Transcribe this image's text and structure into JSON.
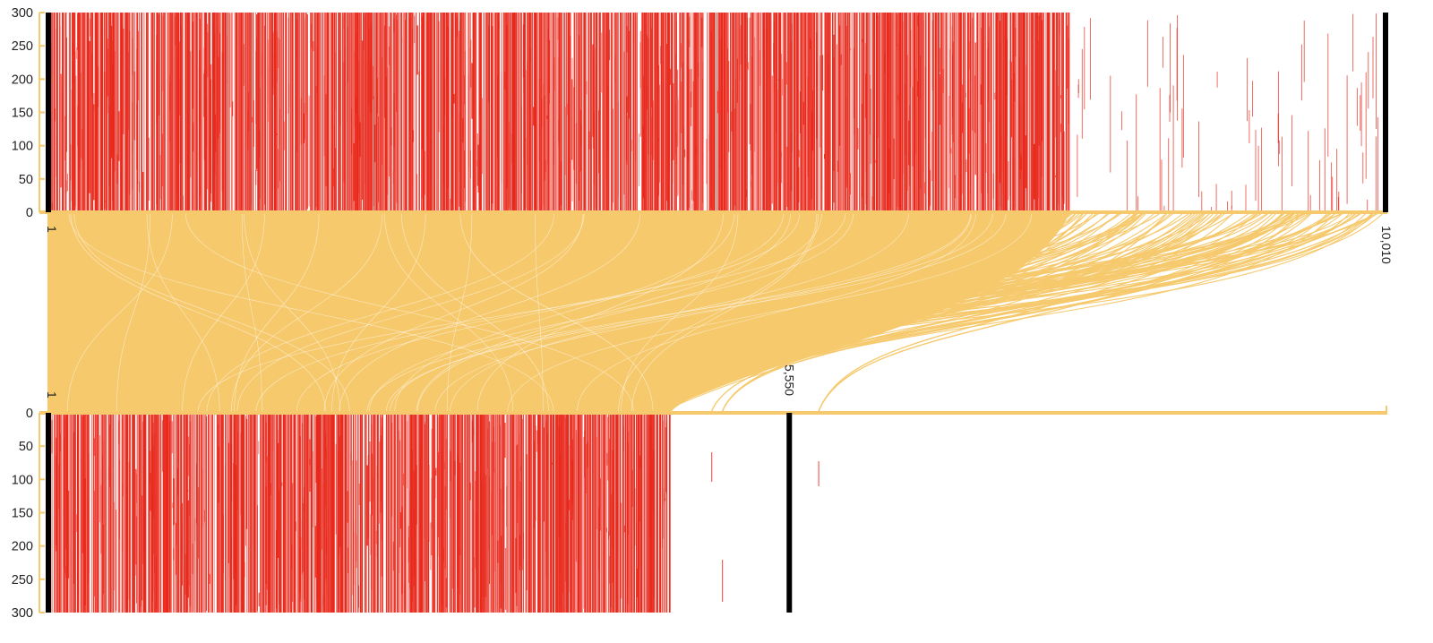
{
  "colors": {
    "bars": "#e8281b",
    "links": "#f6c96d",
    "tracks": "#f6c96d",
    "markers": "#000000",
    "background": "#ffffff"
  },
  "chart_data": {
    "type": "alignment-dot-plot",
    "title": "",
    "top_track": {
      "range": [
        1,
        10010
      ],
      "axis_ticks": [
        "0",
        "50",
        "100",
        "150",
        "200",
        "250",
        "300"
      ],
      "ylim": [
        0,
        300
      ],
      "start_label": "1",
      "end_label": "10,010",
      "dense_coverage_region": [
        1,
        7650
      ],
      "sparse_coverage_region": [
        7650,
        10010
      ],
      "markers_at": [
        1,
        10010
      ]
    },
    "bottom_track": {
      "range": [
        1,
        10010
      ],
      "axis_ticks": [
        "0",
        "50",
        "100",
        "150",
        "200",
        "250",
        "300"
      ],
      "ylim": [
        0,
        300
      ],
      "start_label": "1",
      "marker_label": "5,550",
      "dense_coverage_region": [
        1,
        4660
      ],
      "sparse_reads_at": [
        4970,
        5050,
        5770
      ],
      "markers_at": [
        1,
        5550
      ]
    },
    "links": {
      "description": "",
      "source_track": "top",
      "target_track": "bottom"
    }
  }
}
